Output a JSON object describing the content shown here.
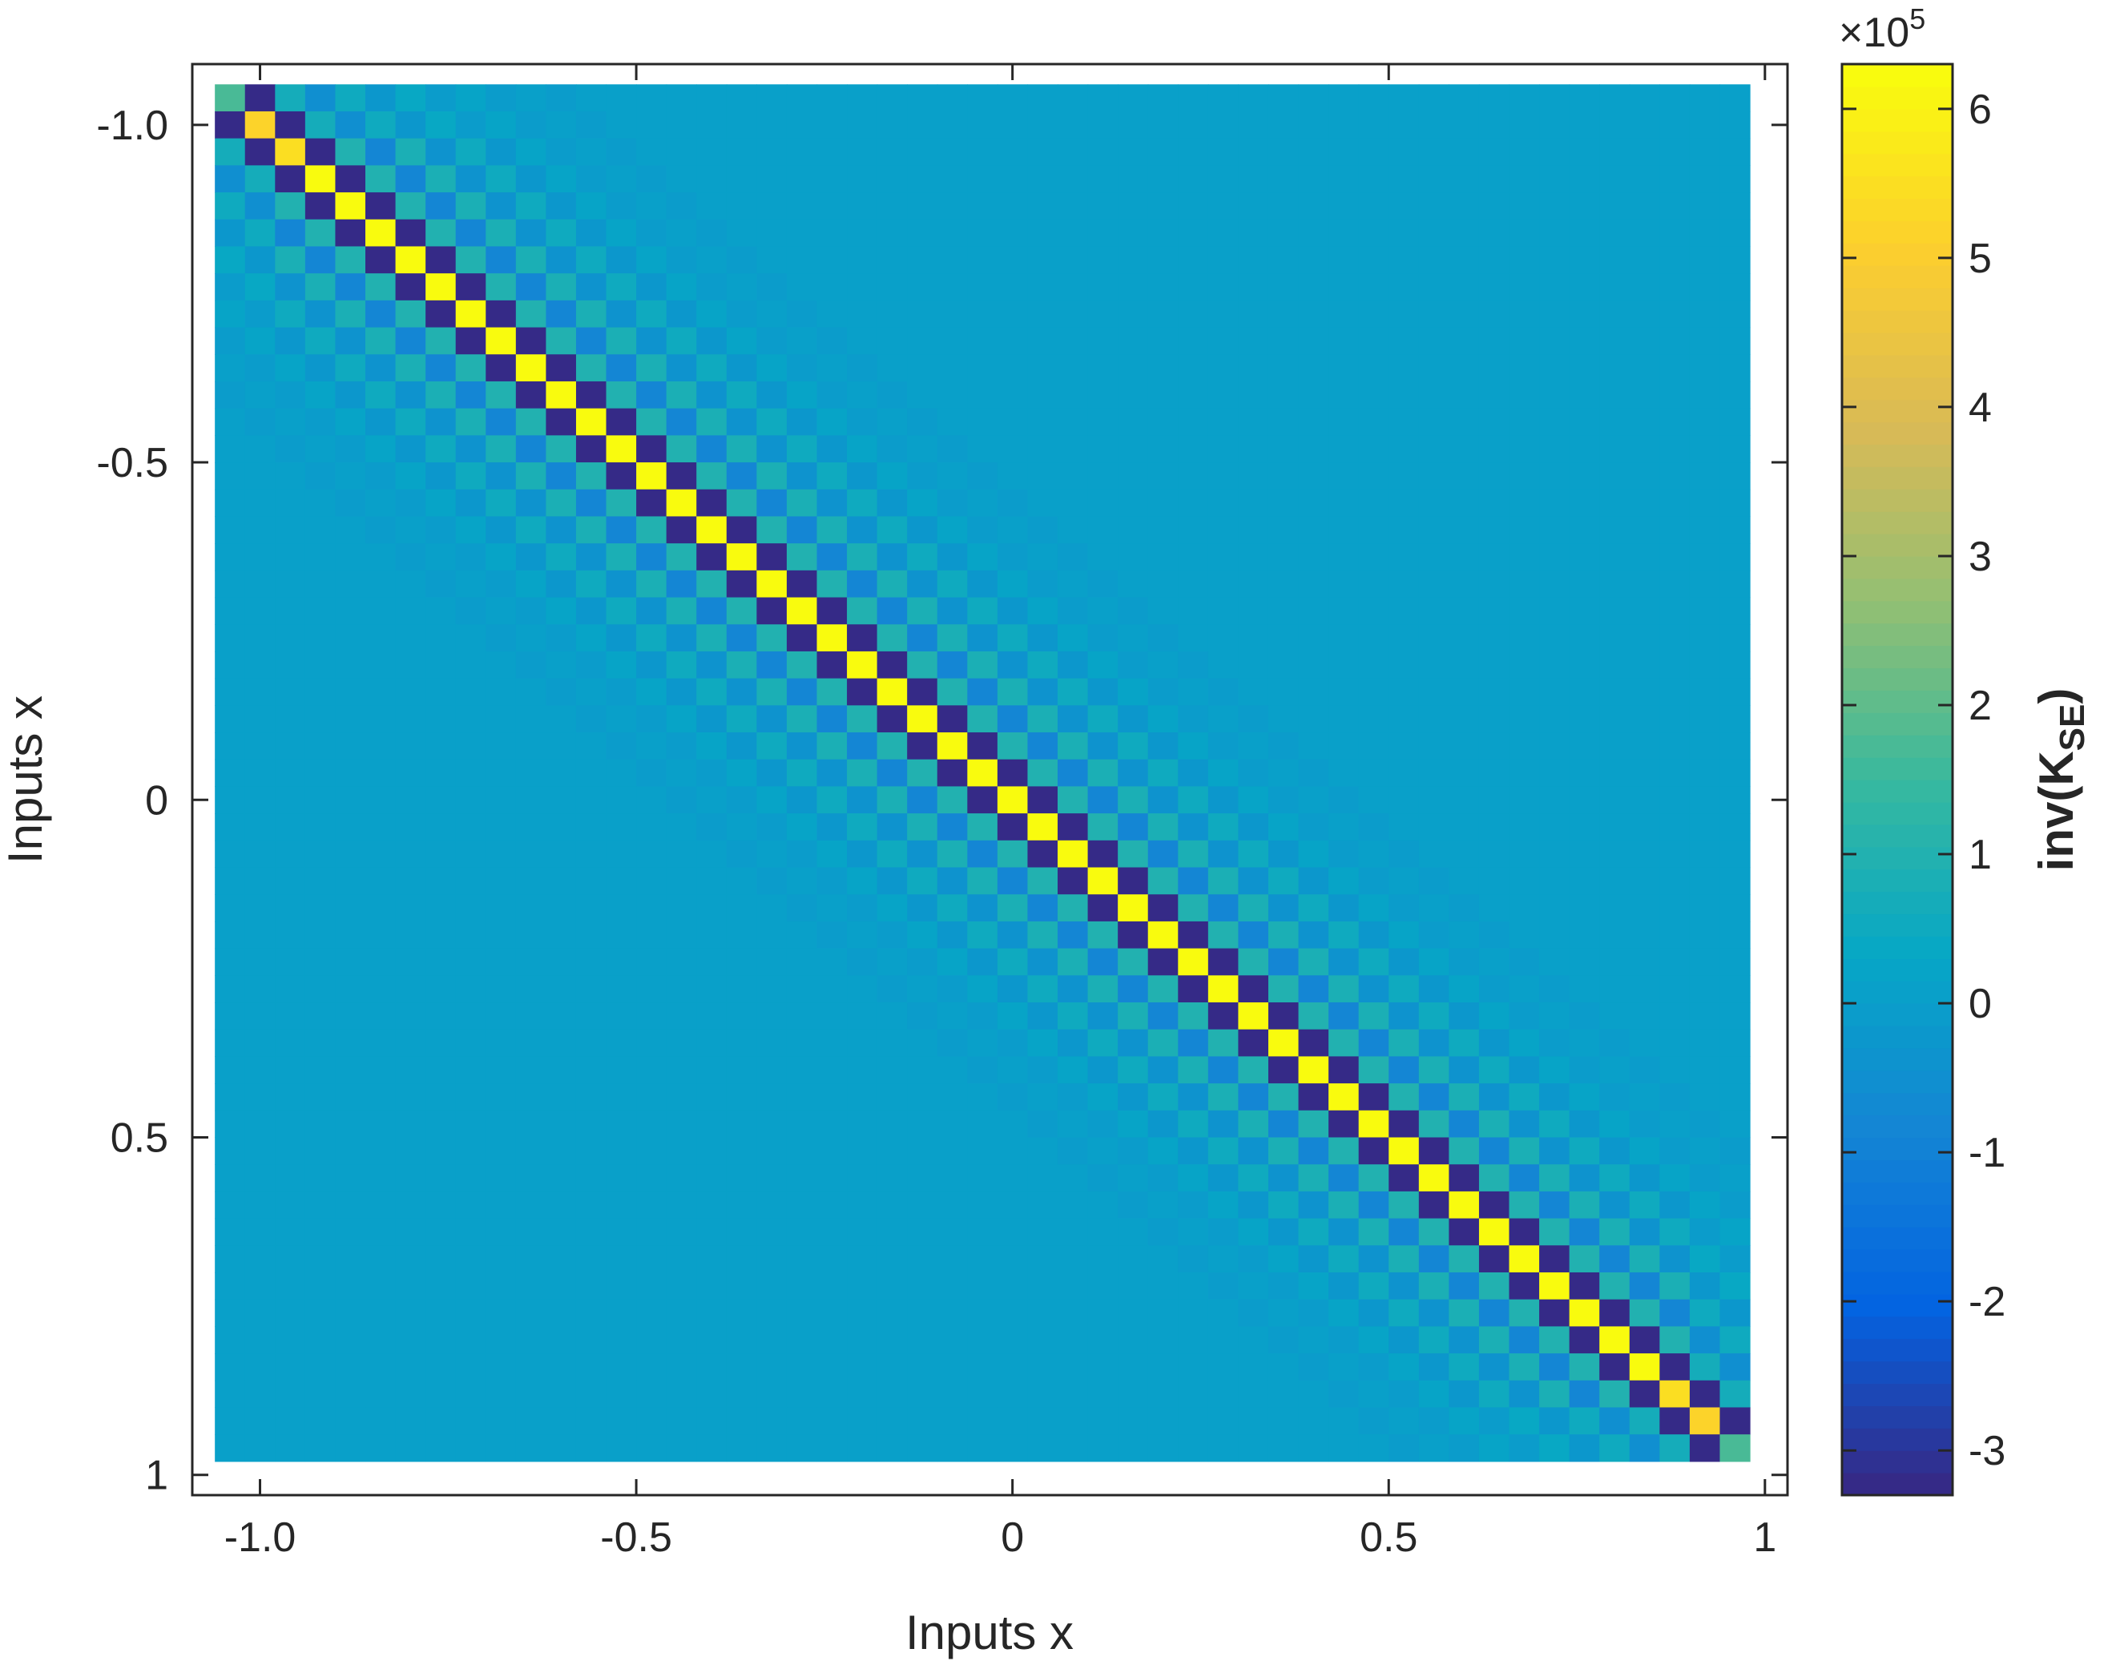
{
  "chart_data": {
    "type": "heatmap",
    "title": "",
    "xlabel": "Inputs x",
    "ylabel": "Inputs x",
    "x_range": [
      -1.09,
      1.03
    ],
    "y_range": [
      -1.09,
      1.03
    ],
    "y_direction": "reversed",
    "grid_points": 51,
    "grid_start": -1.04,
    "grid_step": 0.04,
    "x_ticks": [
      {
        "value": -1.0,
        "label": "-1.0"
      },
      {
        "value": -0.5,
        "label": "-0.5"
      },
      {
        "value": 0,
        "label": "0"
      },
      {
        "value": 0.5,
        "label": "0.5"
      },
      {
        "value": 1,
        "label": "1"
      }
    ],
    "y_ticks": [
      {
        "value": -1.0,
        "label": "-1.0"
      },
      {
        "value": -0.5,
        "label": "-0.5"
      },
      {
        "value": 0,
        "label": "0"
      },
      {
        "value": 0.5,
        "label": "0.5"
      },
      {
        "value": 1,
        "label": "1"
      }
    ],
    "matrix_pattern": {
      "description": "inverse of squared-exponential covariance matrix; banded Toeplitz structure with alternating-sign diagonals",
      "band_values_e5": [
        6.3,
        -3.3,
        0.9,
        -0.85,
        0.8,
        -0.45,
        0.45,
        -0.25,
        0.25,
        -0.12,
        0.12,
        -0.05,
        0.05
      ],
      "corner_values_e5": {
        "first_diag": [
          1.7,
          5.3,
          5.6
        ],
        "last_diag": [
          5.6,
          5.3,
          1.7
        ],
        "first_offdiag": -3.3
      }
    },
    "colorbar": {
      "label_main": "inv(K",
      "label_sub": "SE",
      "label_end": ")",
      "exponent_prefix": "×10",
      "exponent_power": "5",
      "range": [
        -3.3,
        6.3
      ],
      "colormap": "parula",
      "levels": 64,
      "ticks": [
        {
          "value": -3,
          "label": "-3"
        },
        {
          "value": -2,
          "label": "-2"
        },
        {
          "value": -1,
          "label": "-1"
        },
        {
          "value": 0,
          "label": "0"
        },
        {
          "value": 1,
          "label": "1"
        },
        {
          "value": 2,
          "label": "2"
        },
        {
          "value": 3,
          "label": "3"
        },
        {
          "value": 4,
          "label": "4"
        },
        {
          "value": 5,
          "label": "5"
        },
        {
          "value": 6,
          "label": "6"
        }
      ]
    }
  }
}
